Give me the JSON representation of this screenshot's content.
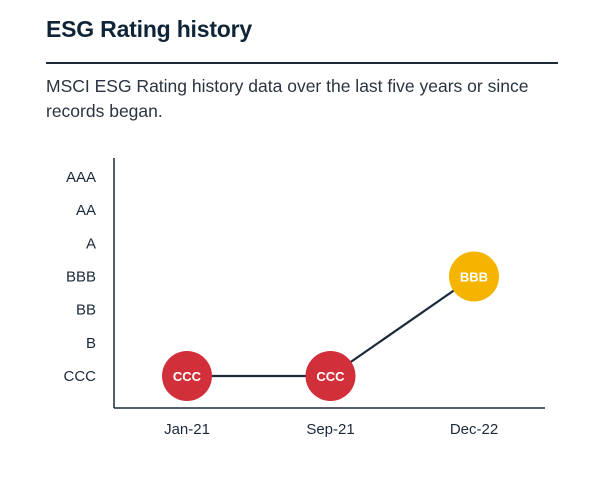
{
  "header": {
    "title": "ESG Rating history",
    "subtitle": "MSCI ESG Rating history data over the last five years or since records began."
  },
  "chart_data": {
    "type": "line",
    "title": "ESG Rating history",
    "xlabel": "",
    "ylabel": "",
    "y_categories": [
      "CCC",
      "B",
      "BB",
      "BBB",
      "A",
      "AA",
      "AAA"
    ],
    "categories": [
      "Jan-21",
      "Sep-21",
      "Dec-22"
    ],
    "values": [
      "CCC",
      "CCC",
      "BBB"
    ],
    "point_colors": [
      "#d1303a",
      "#d1303a",
      "#f5b400"
    ],
    "line_color": "#1b2a3a",
    "grid": false
  }
}
